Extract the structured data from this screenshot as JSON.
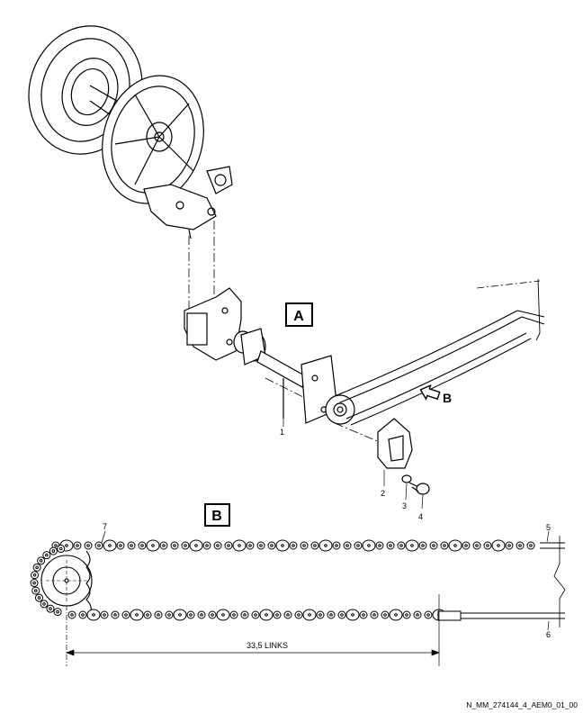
{
  "view_labels": {
    "a": "A",
    "b": "B"
  },
  "arrow_label": "B",
  "callouts": {
    "c1": "1",
    "c2": "2",
    "c3": "3",
    "c4": "4",
    "c5": "5",
    "c6": "6",
    "c7": "7"
  },
  "dimension_label": "33,5 LINKS",
  "reference_code": "N_MM_274144_4_AEM0_01_00",
  "colors": {
    "line": "#000000",
    "background": "#ffffff"
  }
}
